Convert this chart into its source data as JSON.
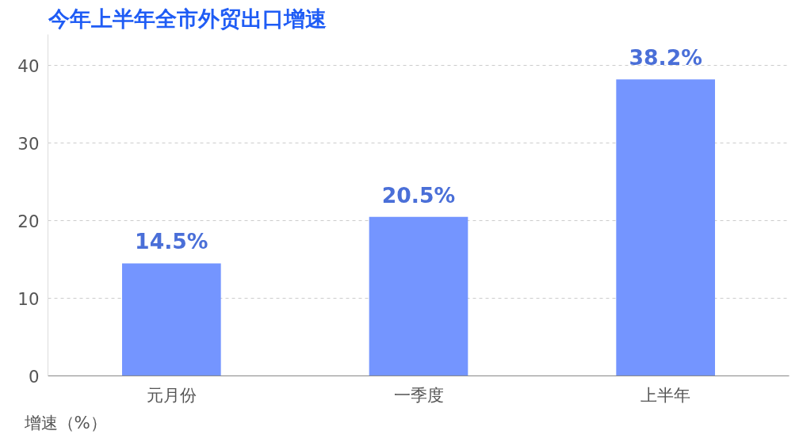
{
  "chart_data": {
    "type": "bar",
    "title": "今年上半年全市外贸出口增速",
    "ylabel": "增速（%）",
    "categories": [
      "元月份",
      "一季度",
      "上半年"
    ],
    "series": [
      {
        "color": "#7495ff",
        "values": [
          14.5,
          20.5,
          38.2
        ],
        "value_labels": [
          "14.5%",
          "20.5%",
          "38.2%"
        ]
      }
    ],
    "ylim": [
      0,
      44
    ],
    "yticks": [
      0,
      10,
      20,
      30,
      40
    ],
    "grid": "y"
  }
}
